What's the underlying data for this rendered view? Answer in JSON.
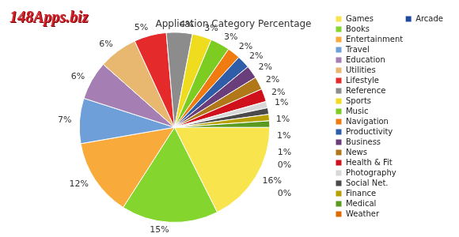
{
  "chart_data": {
    "type": "pie",
    "title": "Application Category Percentage",
    "annotations": [
      "148Apps.biz"
    ],
    "categories": [
      "Games",
      "Books",
      "Entertainment",
      "Travel",
      "Education",
      "Utilities",
      "Lifestyle",
      "Reference",
      "Sports",
      "Music",
      "Navigation",
      "Productivity",
      "Business",
      "News",
      "Health & Fit",
      "Photography",
      "Social Net.",
      "Finance",
      "Medical",
      "Weather",
      "Arcade"
    ],
    "values": [
      16,
      15,
      12,
      7,
      6,
      6,
      5,
      4,
      3,
      3,
      2,
      2,
      2,
      2,
      2,
      1,
      1,
      1,
      1,
      0,
      0
    ],
    "value_labels": [
      "16%",
      "15%",
      "12%",
      "7%",
      "6%",
      "6%",
      "5%",
      "4%",
      "3%",
      "3%",
      "2%",
      "2%",
      "2%",
      "2%",
      "2%",
      "1%",
      "1%",
      "1%",
      "1%",
      "0%",
      "0%"
    ],
    "colors": [
      "#f8e44c",
      "#84d62e",
      "#f8aa3a",
      "#6f9fd8",
      "#a57eb4",
      "#e8b870",
      "#e42a2a",
      "#8c8c8c",
      "#f0dc1e",
      "#7ccc22",
      "#f07b10",
      "#2f5da8",
      "#6a3e7a",
      "#b07818",
      "#d0101a",
      "#d8d8d8",
      "#4a4a4a",
      "#b8a000",
      "#5a9a20",
      "#e06a00",
      "#1f4aa0"
    ],
    "data_labels": true,
    "legend": "right"
  }
}
